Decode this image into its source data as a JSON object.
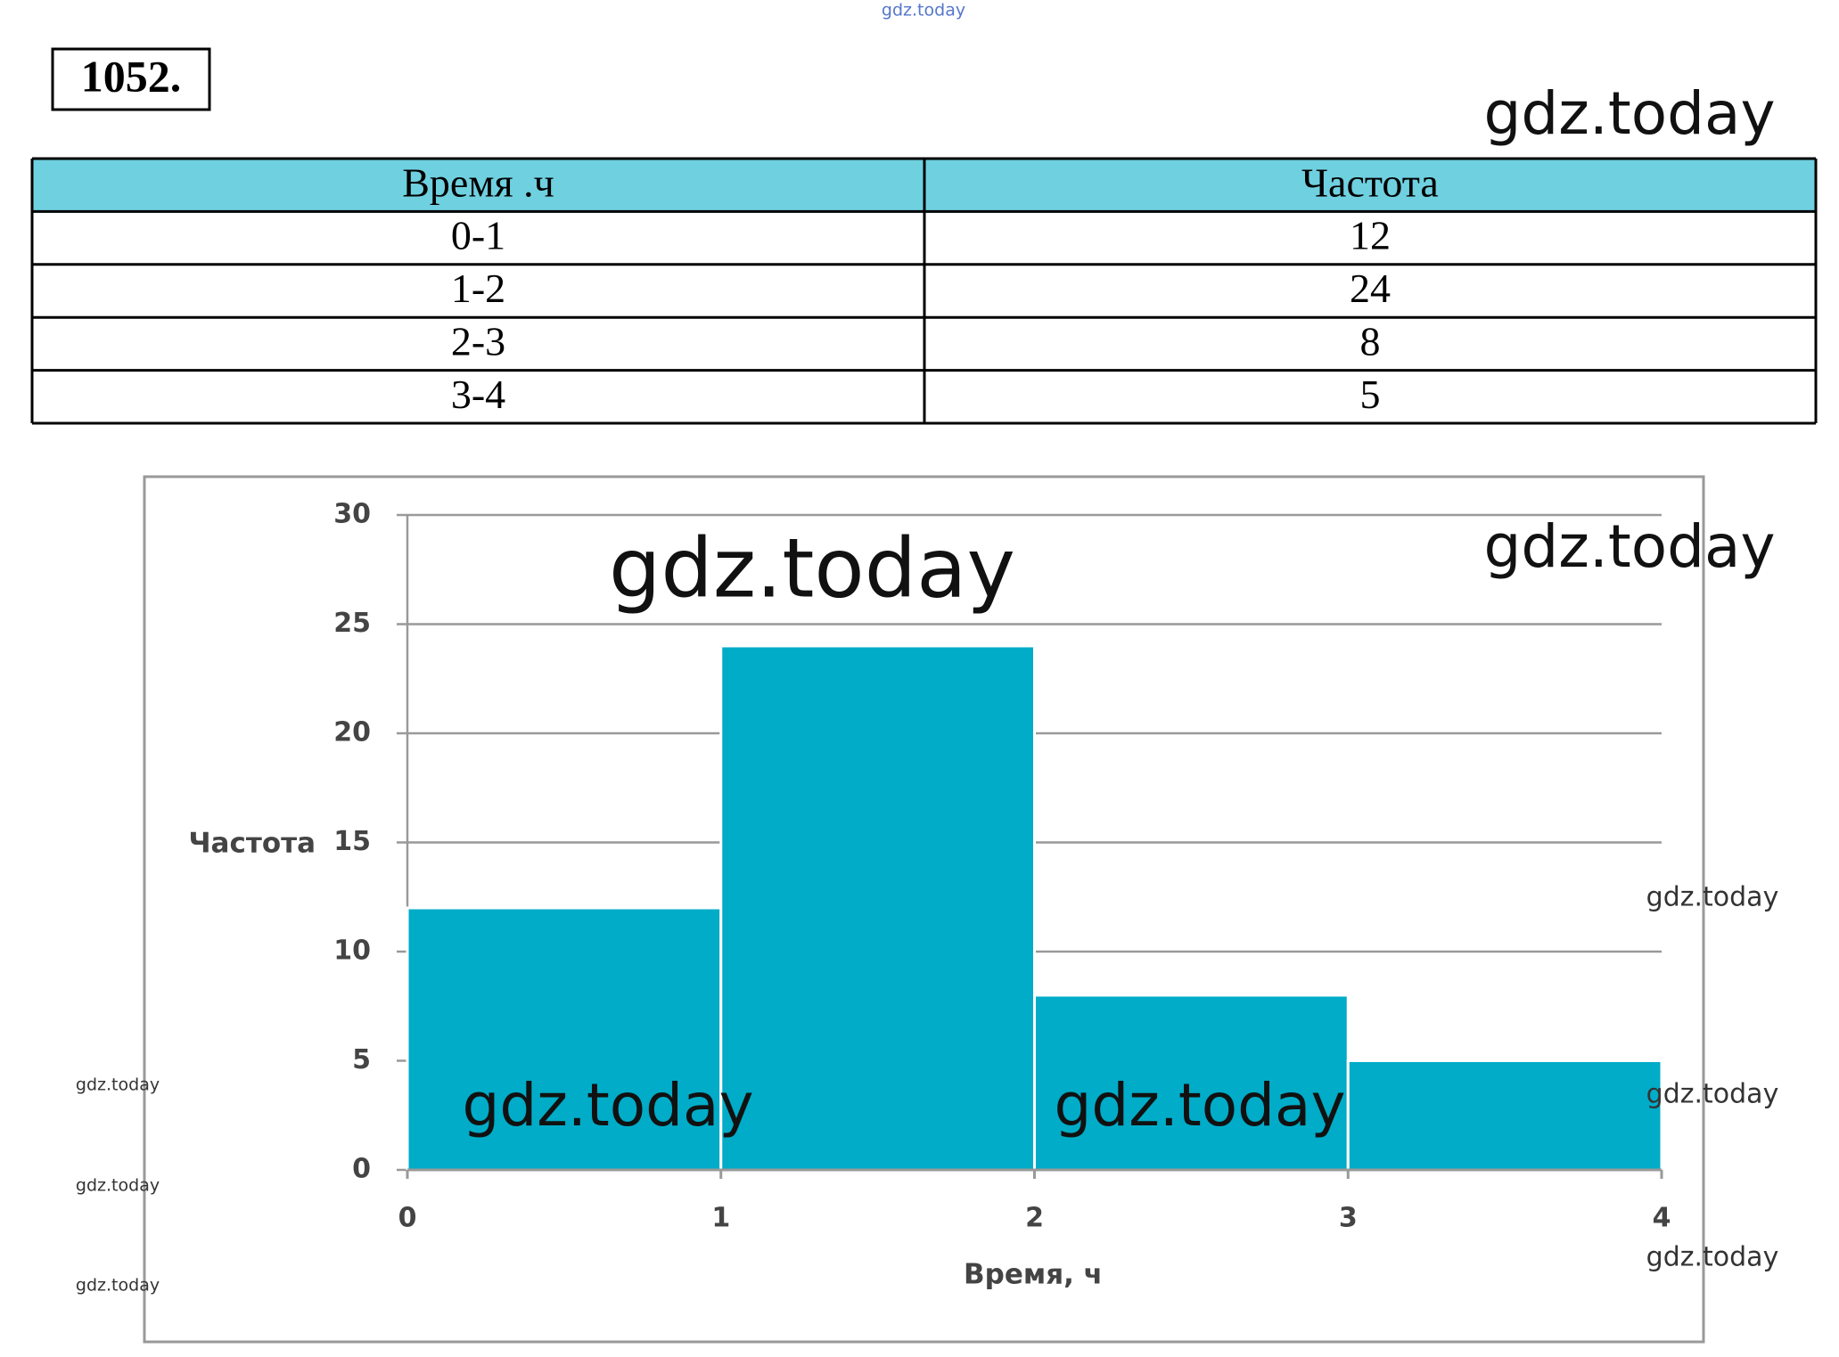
{
  "problem_number": "1052.",
  "table": {
    "header": [
      "Время .ч",
      "Частота"
    ],
    "rows": [
      [
        "0-1",
        "12"
      ],
      [
        "1-2",
        "24"
      ],
      [
        "2-3",
        "8"
      ],
      [
        "3-4",
        "5"
      ]
    ]
  },
  "chart_data": {
    "type": "histogram",
    "bins": [
      0,
      1,
      2,
      3,
      4
    ],
    "values": [
      12,
      24,
      8,
      5
    ],
    "color": "#00acc8",
    "xlim": [
      0,
      4
    ],
    "xticks": [
      0,
      1,
      2,
      3,
      4
    ],
    "ylim": [
      0,
      30
    ],
    "yticks": [
      0,
      5,
      10,
      15,
      20,
      25,
      30
    ],
    "grid": true,
    "xlabel": "Время, ч",
    "ylabel": "Частота"
  },
  "watermarks": [
    "gdz.today",
    "gdz.today",
    "gdz.today",
    "gdz.today",
    "gdz.today",
    "gdz.today",
    "gdz.today",
    "gdz.today",
    "gdz.today",
    "gdz.today",
    "gdz.today",
    "gdz.today"
  ]
}
